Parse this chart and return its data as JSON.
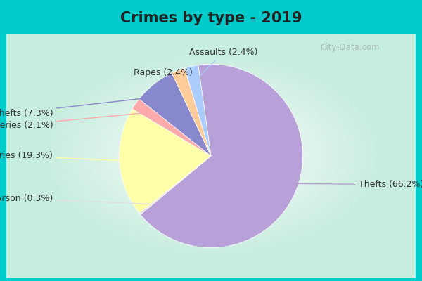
{
  "title": "Crimes by type - 2019",
  "labels": [
    "Thefts",
    "Burglaries",
    "Auto thefts",
    "Assaults",
    "Rapes",
    "Robberies",
    "Arson"
  ],
  "values": [
    66.2,
    19.3,
    7.3,
    2.4,
    2.4,
    2.1,
    0.3
  ],
  "colors": [
    "#b8a0d8",
    "#ffffaa",
    "#8888cc",
    "#aaccff",
    "#ffcc99",
    "#ffaaaa",
    "#e0e0e0"
  ],
  "background_outer": "#00cccc",
  "title_fontsize": 15,
  "label_fontsize": 9,
  "watermark": "City-Data.com",
  "text_positions": {
    "Thefts": [
      1.45,
      -0.28,
      "left"
    ],
    "Burglaries": [
      -1.55,
      0.0,
      "right"
    ],
    "Auto thefts": [
      -1.55,
      0.42,
      "right"
    ],
    "Assaults": [
      0.12,
      1.02,
      "center"
    ],
    "Rapes": [
      -0.18,
      0.82,
      "right"
    ],
    "Robberies": [
      -1.55,
      0.3,
      "right"
    ],
    "Arson": [
      -1.55,
      -0.42,
      "right"
    ]
  }
}
